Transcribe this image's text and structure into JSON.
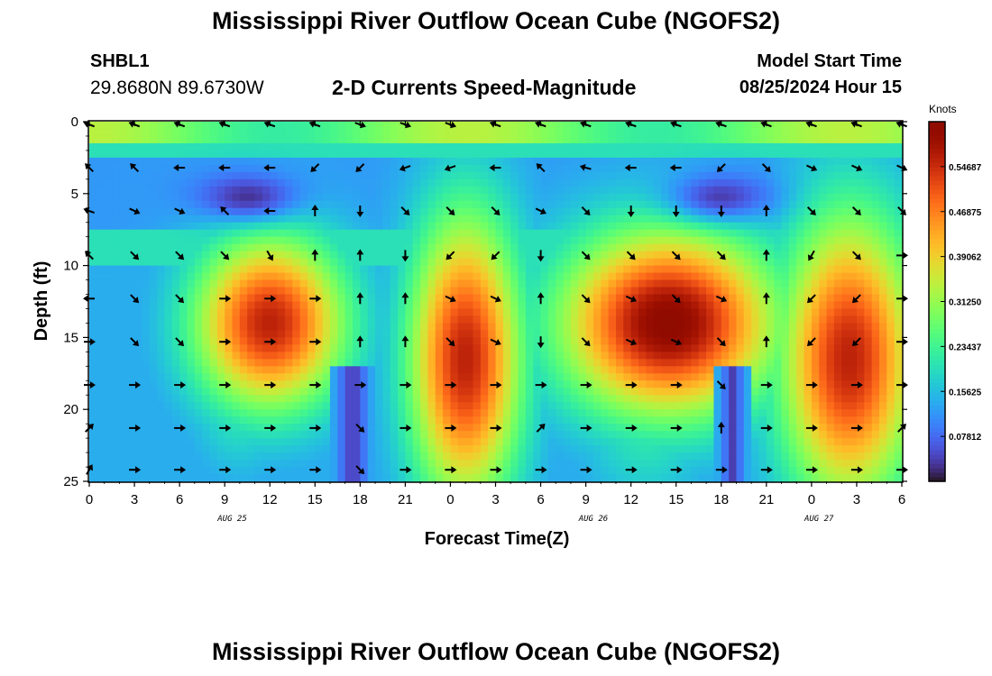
{
  "header": {
    "title": "Mississippi River Outflow Ocean Cube (NGOFS2)",
    "station_name": "SHBL1",
    "station_coords": "29.8680N  89.6730W",
    "subtitle": "2-D Currents Speed-Magnitude",
    "start_label": "Model Start Time",
    "start_value": "08/25/2024 Hour 15"
  },
  "footer": {
    "title": "Mississippi River Outflow Ocean Cube (NGOFS2)"
  },
  "chart_data": {
    "type": "heatmap",
    "title": "2-D Currents Speed-Magnitude",
    "xlabel": "Forecast Time(Z)",
    "ylabel": "Depth (ft)",
    "x_tick_labels": [
      "0",
      "3",
      "6",
      "9",
      "12",
      "15",
      "18",
      "21",
      "0",
      "3",
      "6",
      "9",
      "12",
      "15",
      "18",
      "21",
      "0",
      "3",
      "6"
    ],
    "x_range_hours_from_aug24_00z": [
      0,
      54
    ],
    "date_labels": [
      "AUG 25",
      "AUG 26",
      "AUG 27"
    ],
    "y_ticks": [
      0,
      5,
      10,
      15,
      20,
      25
    ],
    "y_range": [
      0,
      25
    ],
    "y_inverted": true,
    "colorbar": {
      "title": "Knots",
      "tick_labels": [
        "0.07812",
        "0.15625",
        "0.23437",
        "0.31250",
        "0.39062",
        "0.46875",
        "0.54687"
      ],
      "range": [
        0,
        0.625
      ],
      "colormap": "turbo"
    },
    "speed_field": {
      "blobs": [
        {
          "t": 12,
          "d": 14,
          "st": 3.5,
          "sd": 4.2,
          "v": 0.56
        },
        {
          "t": 10,
          "d": 19,
          "st": 2.2,
          "sd": 3.5,
          "v": 0.22
        },
        {
          "t": 25,
          "d": 16.5,
          "st": 2.6,
          "sd": 7.0,
          "v": 0.56
        },
        {
          "t": 38.5,
          "d": 14,
          "st": 5.0,
          "sd": 4.5,
          "v": 0.62
        },
        {
          "t": 37,
          "d": 20,
          "st": 3.0,
          "sd": 4.5,
          "v": 0.22
        },
        {
          "t": 50.5,
          "d": 16.5,
          "st": 3.2,
          "sd": 7.0,
          "v": 0.56
        },
        {
          "t": 25,
          "d": 0.5,
          "st": 6.0,
          "sd": 0.8,
          "v": 0.3
        },
        {
          "t": 1,
          "d": 0.3,
          "st": 2.0,
          "sd": 0.6,
          "v": 0.25
        }
      ],
      "channels": [
        {
          "t0": 16.0,
          "t1": 19.0,
          "d0": 17.0,
          "d1": 25.0,
          "v": 0.03
        },
        {
          "t0": 41.5,
          "t1": 44.0,
          "d0": 17.0,
          "d1": 25.0,
          "v": 0.04
        }
      ],
      "calm_band": {
        "d0": 2.5,
        "d1": 7.5,
        "v": 0.09
      },
      "calm_spots": [
        {
          "t": 10.5,
          "d": 5.2,
          "st": 2.5,
          "sd": 1.2,
          "v": 0.03
        },
        {
          "t": 42,
          "d": 5.2,
          "st": 2.5,
          "sd": 1.2,
          "v": 0.04
        }
      ]
    },
    "arrow_depths": [
      0.2,
      3.2,
      6.2,
      9.3,
      12.3,
      15.3,
      18.3,
      21.3,
      24.2
    ],
    "arrow_angles_deg": [
      [
        200,
        200,
        200,
        200,
        200,
        200,
        20,
        20,
        20,
        200,
        200,
        200,
        200,
        200,
        200,
        200,
        200,
        200,
        200
      ],
      [
        225,
        225,
        180,
        180,
        180,
        135,
        135,
        160,
        160,
        180,
        225,
        195,
        180,
        180,
        135,
        45,
        25,
        25,
        25
      ],
      [
        200,
        25,
        25,
        225,
        180,
        270,
        90,
        45,
        45,
        45,
        25,
        45,
        90,
        90,
        90,
        270,
        45,
        45,
        45
      ],
      [
        225,
        45,
        45,
        45,
        60,
        270,
        270,
        90,
        135,
        135,
        90,
        45,
        45,
        45,
        45,
        270,
        120,
        45,
        0
      ],
      [
        180,
        45,
        45,
        0,
        0,
        0,
        270,
        270,
        25,
        25,
        270,
        45,
        25,
        45,
        25,
        270,
        135,
        135,
        0
      ],
      [
        0,
        45,
        45,
        0,
        0,
        0,
        270,
        270,
        45,
        25,
        90,
        45,
        25,
        25,
        45,
        270,
        135,
        135,
        0
      ],
      [
        0,
        0,
        0,
        0,
        0,
        0,
        0,
        0,
        0,
        0,
        0,
        0,
        0,
        0,
        45,
        0,
        0,
        0,
        0
      ],
      [
        315,
        0,
        0,
        0,
        0,
        0,
        45,
        0,
        0,
        0,
        315,
        0,
        0,
        0,
        270,
        0,
        0,
        0,
        315
      ],
      [
        300,
        0,
        0,
        0,
        0,
        0,
        45,
        0,
        0,
        0,
        0,
        0,
        0,
        0,
        0,
        0,
        0,
        0,
        0
      ]
    ]
  }
}
